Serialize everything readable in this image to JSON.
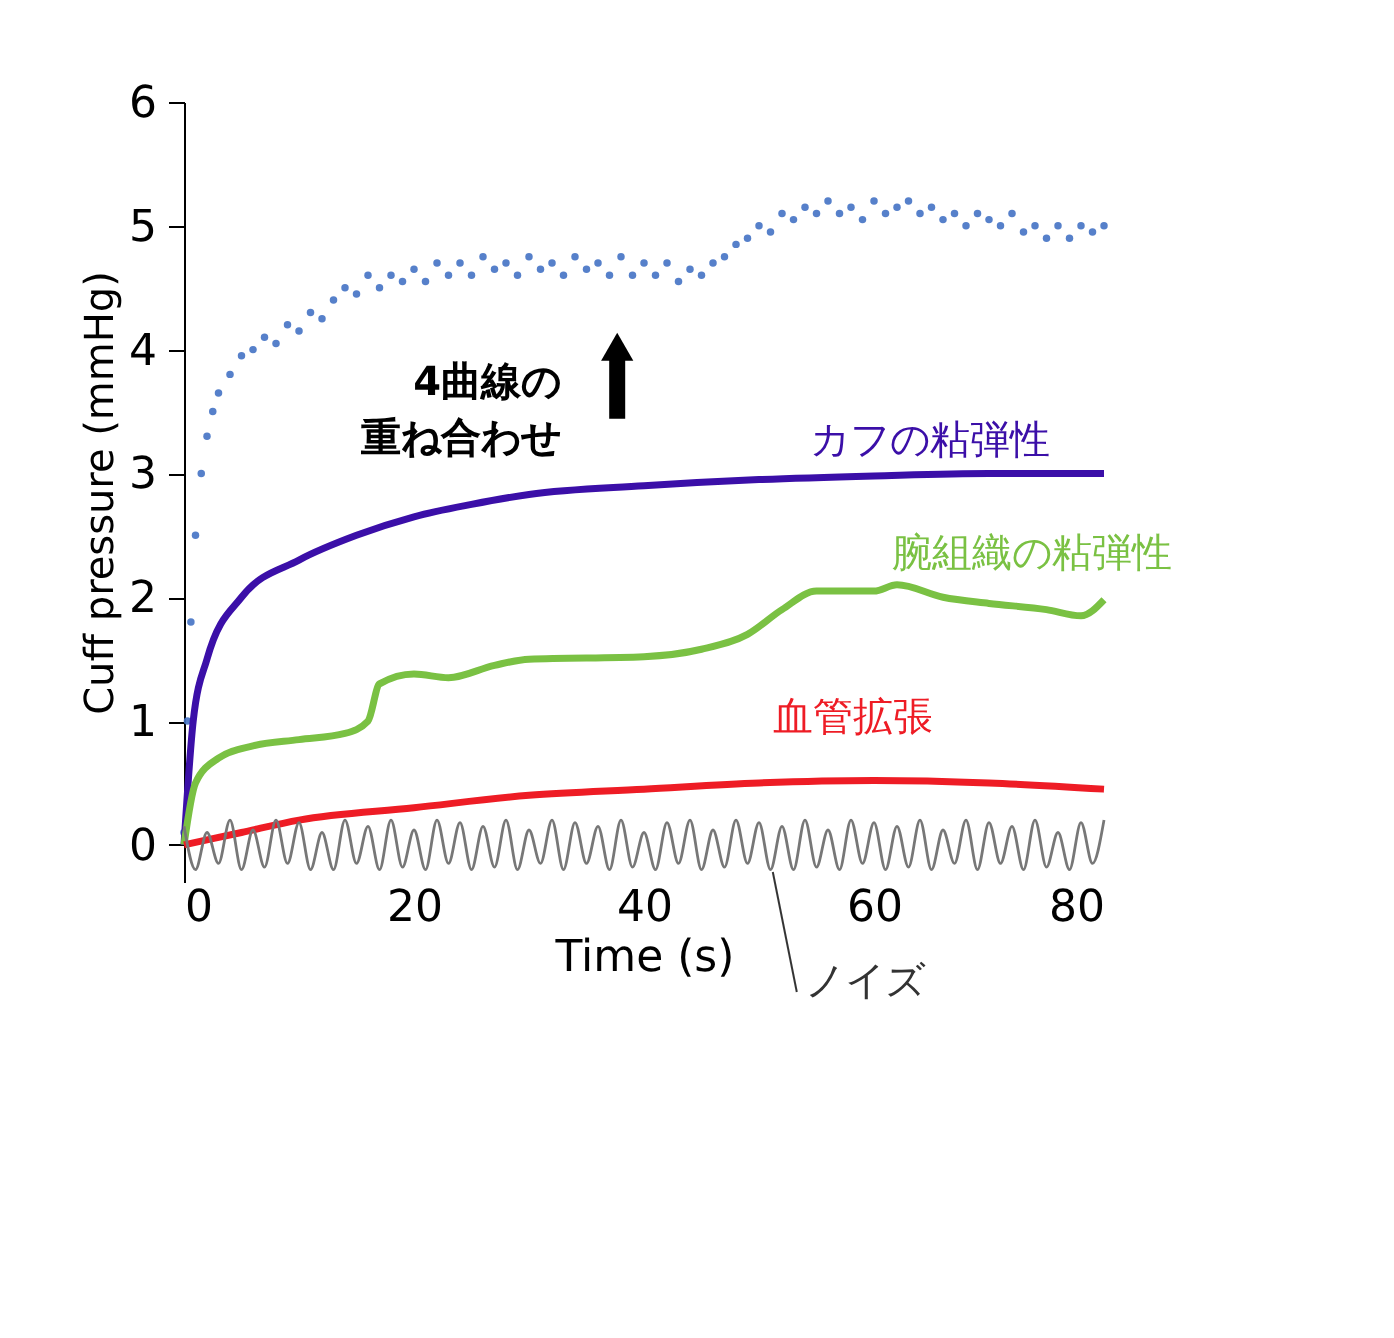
{
  "chart_data": {
    "type": "line",
    "xlabel": "Time (s)",
    "ylabel": "Cuff pressure (mmHg)",
    "xlim": [
      0,
      80
    ],
    "ylim": [
      -0.3,
      6
    ],
    "xticks": [
      0,
      20,
      40,
      60,
      80
    ],
    "yticks": [
      0,
      1,
      2,
      3,
      4,
      5,
      6
    ],
    "grid": false,
    "tick_labels": true,
    "annotations": [
      "4曲線の重ね合わせ"
    ],
    "x": [
      0,
      1,
      2,
      3,
      4,
      5,
      6,
      7,
      8,
      9,
      10,
      11,
      12,
      13,
      14,
      15,
      16,
      17,
      18,
      19,
      20,
      21,
      22,
      23,
      24,
      25,
      26,
      27,
      28,
      29,
      30,
      31,
      32,
      33,
      34,
      35,
      36,
      37,
      38,
      39,
      40,
      41,
      42,
      43,
      44,
      45,
      46,
      47,
      48,
      49,
      50,
      51,
      52,
      53,
      54,
      55,
      56,
      57,
      58,
      59,
      60,
      61,
      62,
      63,
      64,
      65,
      66,
      67,
      68,
      69,
      70,
      71,
      72,
      73,
      74,
      75,
      76,
      77,
      78,
      79,
      80
    ],
    "series": [
      {
        "type": "scatter",
        "color": "#4472c4",
        "x": [
          0,
          0.3,
          0.6,
          1,
          1.5,
          2,
          2.5,
          3,
          4,
          5,
          6,
          7,
          8,
          9,
          10,
          11,
          12,
          13,
          14,
          15,
          16,
          17,
          18,
          19,
          20,
          21,
          22,
          23,
          24,
          25,
          26,
          27,
          28,
          29,
          30,
          31,
          32,
          33,
          34,
          35,
          36,
          37,
          38,
          39,
          40,
          41,
          42,
          43,
          44,
          45,
          46,
          47,
          48,
          49,
          50,
          51,
          52,
          53,
          54,
          55,
          56,
          57,
          58,
          59,
          60,
          61,
          62,
          63,
          64,
          65,
          66,
          67,
          68,
          69,
          70,
          71,
          72,
          73,
          74,
          75,
          76,
          77,
          78,
          79,
          80
        ],
        "values": [
          0.1,
          1.0,
          1.8,
          2.5,
          3.0,
          3.3,
          3.5,
          3.65,
          3.8,
          3.95,
          4.0,
          4.1,
          4.05,
          4.2,
          4.15,
          4.3,
          4.25,
          4.4,
          4.5,
          4.45,
          4.6,
          4.5,
          4.6,
          4.55,
          4.65,
          4.55,
          4.7,
          4.6,
          4.7,
          4.6,
          4.75,
          4.65,
          4.7,
          4.6,
          4.75,
          4.65,
          4.7,
          4.6,
          4.75,
          4.65,
          4.7,
          4.6,
          4.75,
          4.6,
          4.7,
          4.6,
          4.7,
          4.55,
          4.65,
          4.6,
          4.7,
          4.75,
          4.85,
          4.9,
          5.0,
          4.95,
          5.1,
          5.05,
          5.15,
          5.1,
          5.2,
          5.1,
          5.15,
          5.05,
          5.2,
          5.1,
          5.15,
          5.2,
          5.1,
          5.15,
          5.05,
          5.1,
          5.0,
          5.1,
          5.05,
          5.0,
          5.1,
          4.95,
          5.0,
          4.9,
          5.0,
          4.9,
          5.0,
          4.95,
          5.0
        ]
      },
      {
        "type": "line",
        "name": "カフの粘弾性",
        "color": "#3b0fa8",
        "x": [
          0,
          0.8,
          2,
          5,
          10,
          15,
          20,
          25,
          30,
          40,
          50,
          60,
          70,
          80
        ],
        "values": [
          0,
          1,
          1.5,
          2,
          2.3,
          2.5,
          2.65,
          2.75,
          2.83,
          2.9,
          2.95,
          2.98,
          3.0,
          3.0
        ]
      },
      {
        "type": "line",
        "name": "腕組織の粘弾性",
        "color": "#7ac143",
        "x": [
          0,
          1,
          3,
          6,
          10,
          14,
          16,
          17,
          20,
          23,
          27,
          30,
          40,
          45,
          49,
          52,
          55,
          58,
          60,
          62,
          66,
          70,
          75,
          78,
          80
        ],
        "values": [
          0,
          0.5,
          0.7,
          0.8,
          0.85,
          0.9,
          1.0,
          1.3,
          1.38,
          1.35,
          1.45,
          1.5,
          1.52,
          1.58,
          1.7,
          1.9,
          2.05,
          2.05,
          2.05,
          2.1,
          2.0,
          1.95,
          1.9,
          1.85,
          1.98
        ]
      },
      {
        "type": "line",
        "name": "血管拡張",
        "color": "#ee1c25",
        "x": [
          0,
          5,
          10,
          20,
          30,
          40,
          50,
          60,
          70,
          80
        ],
        "values": [
          0,
          0.1,
          0.2,
          0.3,
          0.4,
          0.45,
          0.5,
          0.52,
          0.5,
          0.45
        ]
      },
      {
        "name": "ノイズ",
        "color": "#777777",
        "values": [
          0.15,
          -0.2,
          0.1,
          -0.15,
          0.2,
          -0.2,
          0.12,
          -0.18,
          0.2,
          -0.15,
          0.18,
          -0.2,
          0.1,
          -0.2,
          0.2,
          -0.15,
          0.15,
          -0.2,
          0.2,
          -0.18,
          0.12,
          -0.2,
          0.2,
          -0.15,
          0.18,
          -0.2,
          0.15,
          -0.18,
          0.2,
          -0.2,
          0.12,
          -0.15,
          0.2,
          -0.2,
          0.18,
          -0.15,
          0.15,
          -0.2,
          0.2,
          -0.18,
          0.1,
          -0.2,
          0.18,
          -0.15,
          0.2,
          -0.2,
          0.12,
          -0.18,
          0.2,
          -0.15,
          0.18,
          -0.2,
          0.15,
          -0.2,
          0.2,
          -0.18,
          0.12,
          -0.2,
          0.2,
          -0.15,
          0.18,
          -0.2,
          0.15,
          -0.18,
          0.2,
          -0.2,
          0.12,
          -0.15,
          0.2,
          -0.2,
          0.18,
          -0.15,
          0.15,
          -0.2,
          0.2,
          -0.18,
          0.1,
          -0.2,
          0.18,
          -0.15,
          0.2
        ]
      }
    ]
  }
}
